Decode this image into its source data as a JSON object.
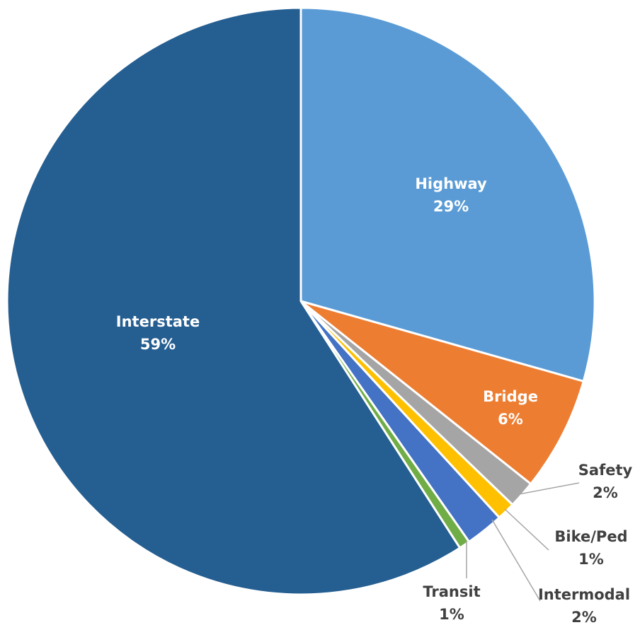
{
  "chart_data": {
    "type": "pie",
    "start_angle_deg": 0,
    "direction": "clockwise",
    "legend": "none",
    "slices": [
      {
        "label": "Highway",
        "pct_label": "29%",
        "value": 29.4,
        "color": "#5b9bd5",
        "label_position": "inside"
      },
      {
        "label": "Bridge",
        "pct_label": "6%",
        "value": 6.3,
        "color": "#ed7d31",
        "label_position": "inside"
      },
      {
        "label": "Safety",
        "pct_label": "2%",
        "value": 1.5,
        "color": "#a5a5a5",
        "label_position": "outside"
      },
      {
        "label": "Bike/Ped",
        "pct_label": "1%",
        "value": 1.0,
        "color": "#ffc000",
        "label_position": "outside"
      },
      {
        "label": "Intermodal",
        "pct_label": "2%",
        "value": 2.1,
        "color": "#4472c4",
        "label_position": "outside"
      },
      {
        "label": "Transit",
        "pct_label": "1%",
        "value": 0.6,
        "color": "#70ad47",
        "label_position": "outside"
      },
      {
        "label": "Interstate",
        "pct_label": "59%",
        "value": 59.1,
        "color": "#255e91",
        "label_position": "inside"
      }
    ]
  }
}
